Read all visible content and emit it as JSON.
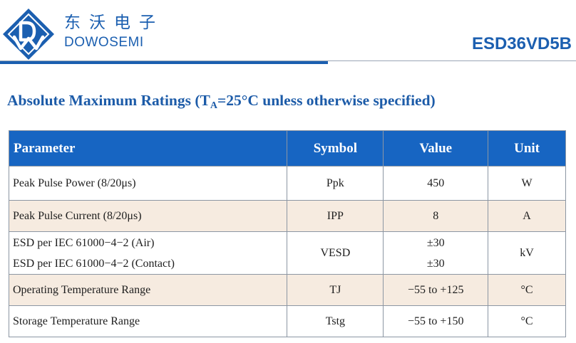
{
  "header": {
    "brand_cn": "东沃电子",
    "brand_en": "DOWOSEMI",
    "part_number": "ESD36VD5B"
  },
  "section": {
    "title_prefix": "Absolute Maximum Ratings (T",
    "title_sub": "A",
    "title_suffix": "=25°C unless otherwise specified)"
  },
  "table": {
    "headers": {
      "parameter": "Parameter",
      "symbol": "Symbol",
      "value": "Value",
      "unit": "Unit"
    },
    "rows": [
      {
        "parameter": "Peak Pulse Power (8/20μs)",
        "symbol": "Ppk",
        "value": "450",
        "unit": "W"
      },
      {
        "parameter": "Peak Pulse Current (8/20μs)",
        "symbol": "IPP",
        "value": "8",
        "unit": "A"
      },
      {
        "parameter_lines": [
          "ESD per IEC 61000−4−2 (Air)",
          "ESD per IEC 61000−4−2 (Contact)"
        ],
        "symbol": "VESD",
        "value_lines": [
          "±30",
          "±30"
        ],
        "unit": "kV"
      },
      {
        "parameter": "Operating Temperature Range",
        "symbol": "TJ",
        "value": "−55 to +125",
        "unit": "°C"
      },
      {
        "parameter": "Storage Temperature Range",
        "symbol": "Tstg",
        "value": "−55 to +150",
        "unit": "°C"
      }
    ]
  },
  "colors": {
    "brand_blue": "#1b5fb0",
    "header_fill": "#1765c2",
    "shaded_row": "#f6ebe0"
  }
}
